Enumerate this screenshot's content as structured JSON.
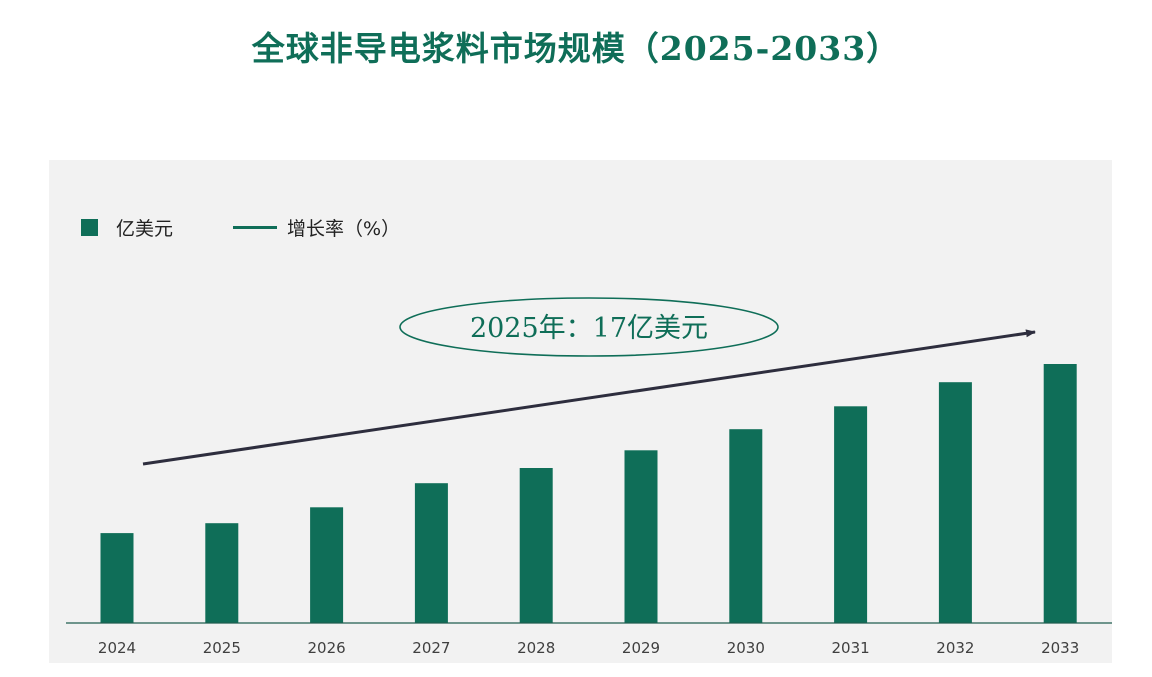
{
  "page": {
    "title": "全球非导电浆料市场规模（2025-2033）"
  },
  "legend": {
    "bar_label": "亿美元",
    "line_label": "增长率（%）"
  },
  "callout": {
    "text": "2025年：17亿美元"
  },
  "colors": {
    "bar": "#0f6e58",
    "title": "#0f6e58",
    "arrow": "#2e2e3e",
    "background": "#f2f2f2"
  },
  "chart_data": {
    "type": "bar",
    "categories": [
      "2024",
      "2025",
      "2026",
      "2027",
      "2028",
      "2029",
      "2030",
      "2031",
      "2032",
      "2033"
    ],
    "series": [
      {
        "name": "亿美元",
        "values": [
          15.3,
          17,
          19.7,
          23.8,
          26.4,
          29.4,
          33,
          36.9,
          41,
          44.1
        ]
      }
    ],
    "ylim": [
      0,
      55
    ],
    "y_axis_visible": false,
    "grid": false,
    "legend_position": "top-left",
    "annotation": "2025年：17亿美元",
    "trend_arrow": true
  }
}
